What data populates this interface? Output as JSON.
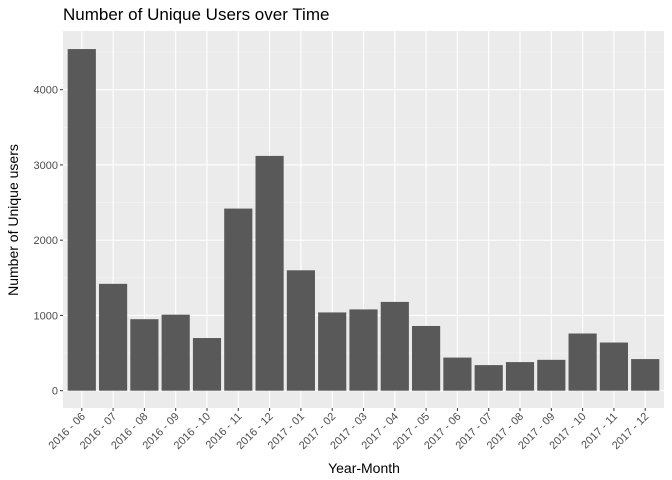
{
  "chart_data": {
    "type": "bar",
    "title": "Number of Unique Users over Time",
    "xlabel": "Year-Month",
    "ylabel": "Number of Unique users",
    "categories": [
      "2016 - 06",
      "2016 - 07",
      "2016 - 08",
      "2016 - 09",
      "2016 - 10",
      "2016 - 11",
      "2016 - 12",
      "2017 - 01",
      "2017 - 02",
      "2017 - 03",
      "2017 - 04",
      "2017 - 05",
      "2017 - 06",
      "2017 - 07",
      "2017 - 08",
      "2017 - 09",
      "2017 - 10",
      "2017 - 11",
      "2017 - 12"
    ],
    "values": [
      4540,
      1420,
      950,
      1010,
      700,
      2420,
      3120,
      1600,
      1040,
      1080,
      1180,
      860,
      440,
      340,
      380,
      410,
      760,
      640,
      420
    ],
    "ylim": [
      -230,
      4780
    ],
    "yticks": [
      0,
      1000,
      2000,
      3000,
      4000
    ],
    "ytick_labels": [
      "0",
      "1000",
      "2000",
      "3000",
      "4000"
    ],
    "bar_color": "#595959",
    "panel_color": "#ebebeb",
    "grid": true,
    "legend": "none"
  }
}
